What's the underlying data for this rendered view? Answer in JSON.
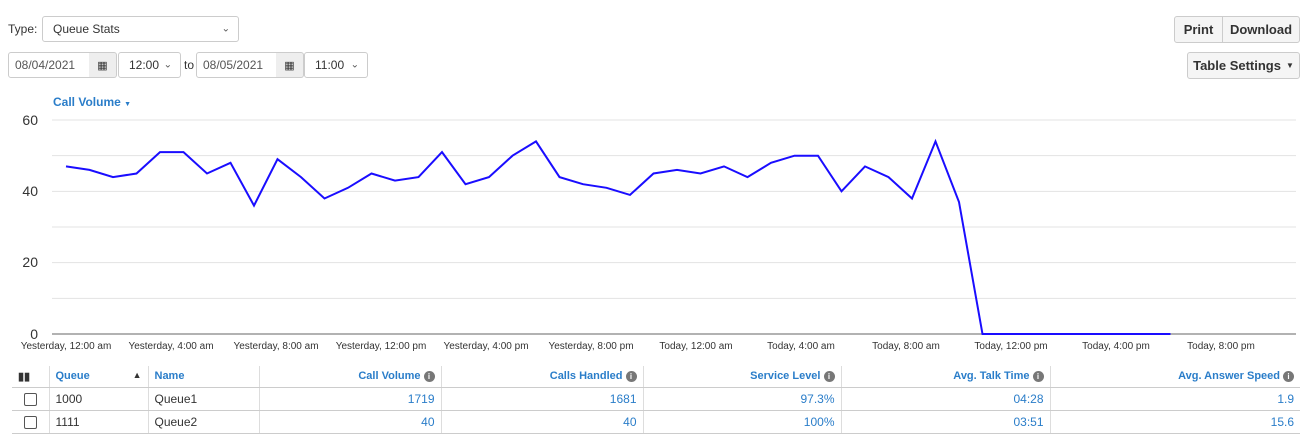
{
  "filters": {
    "type_label": "Type:",
    "type_value": "Queue Stats",
    "start_date": "08/04/2021",
    "start_time": "12:00",
    "to_label": "to",
    "end_date": "08/05/2021",
    "end_time": "11:00"
  },
  "toolbar": {
    "print_label": "Print",
    "download_label": "Download",
    "table_settings_label": "Table Settings"
  },
  "chart_data": {
    "type": "line",
    "title": "Call Volume",
    "ylim": [
      0,
      60
    ],
    "yticks": [
      "0",
      "20",
      "40",
      "60"
    ],
    "grid": true,
    "x_tick_labels": [
      "Yesterday, 12:00 am",
      "Yesterday, 4:00 am",
      "Yesterday, 8:00 am",
      "Yesterday, 12:00 pm",
      "Yesterday, 4:00 pm",
      "Yesterday, 8:00 pm",
      "Today, 12:00 am",
      "Today, 4:00 am",
      "Today, 8:00 am",
      "Today, 12:00 pm",
      "Today, 4:00 pm",
      "Today, 8:00 pm"
    ],
    "color": "#1a0dff",
    "series": [
      {
        "values": [
          47,
          46,
          44,
          45,
          51,
          51,
          45,
          48,
          36,
          49,
          44,
          38,
          41,
          45,
          43,
          44,
          51,
          42,
          44,
          50,
          54,
          44,
          42,
          41,
          39,
          45,
          46,
          45,
          47,
          44,
          48,
          50,
          50,
          40,
          47,
          44,
          38,
          54,
          37,
          0,
          0,
          0,
          0,
          0,
          0,
          0,
          0,
          0
        ]
      }
    ]
  },
  "table": {
    "columns": [
      "Queue",
      "Name",
      "Call Volume",
      "Calls Handled",
      "Service Level",
      "Avg. Talk Time",
      "Avg. Answer Speed"
    ],
    "rows": [
      [
        "1000",
        "Queue1",
        "1719",
        "1681",
        "97.3%",
        "04:28",
        "1.9"
      ],
      [
        "1111",
        "Queue2",
        "40",
        "40",
        "100%",
        "03:51",
        "15.6"
      ]
    ]
  }
}
